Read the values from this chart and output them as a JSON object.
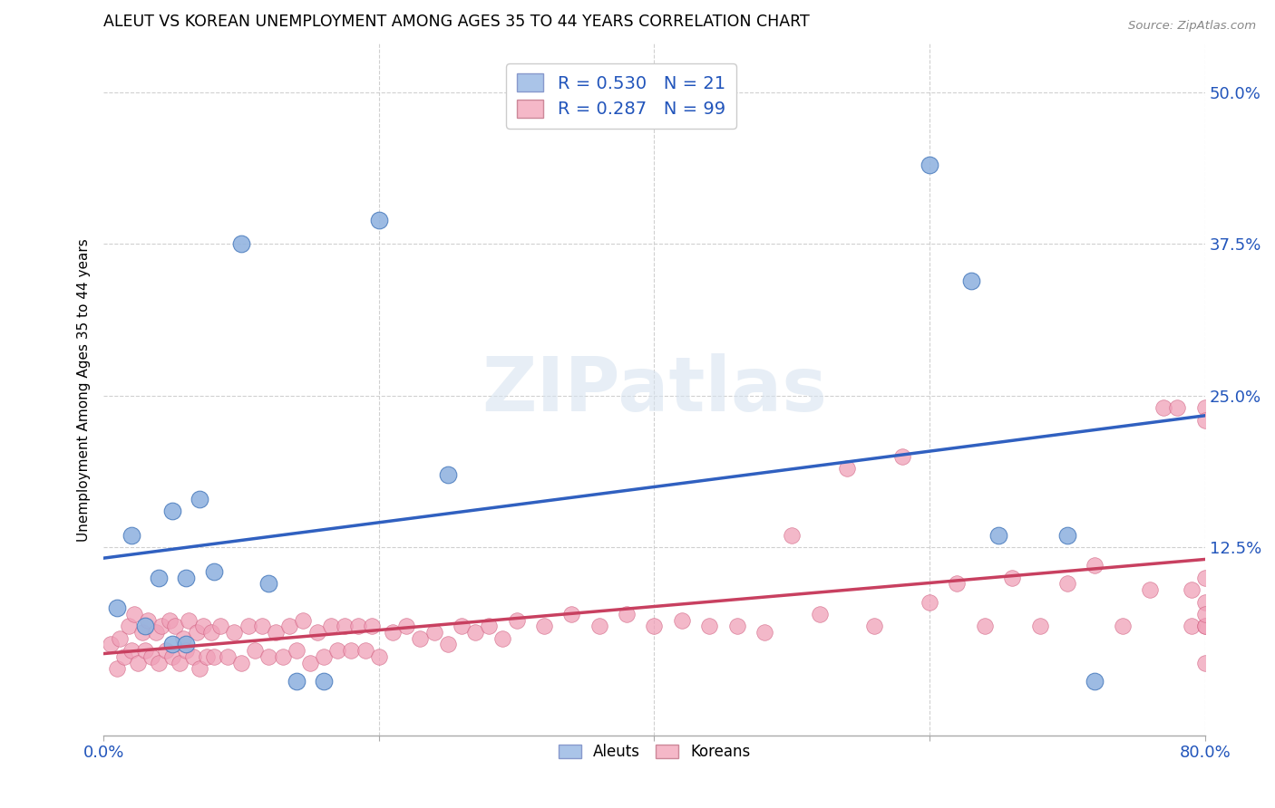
{
  "title": "ALEUT VS KOREAN UNEMPLOYMENT AMONG AGES 35 TO 44 YEARS CORRELATION CHART",
  "source": "Source: ZipAtlas.com",
  "ylabel": "Unemployment Among Ages 35 to 44 years",
  "xlim": [
    0.0,
    0.8
  ],
  "ylim": [
    -0.03,
    0.54
  ],
  "xticks": [
    0.0,
    0.2,
    0.4,
    0.6,
    0.8
  ],
  "xticklabels": [
    "0.0%",
    "",
    "",
    "",
    "80.0%"
  ],
  "yticks": [
    0.0,
    0.125,
    0.25,
    0.375,
    0.5
  ],
  "yticklabels": [
    "",
    "12.5%",
    "25.0%",
    "37.5%",
    "50.0%"
  ],
  "background_color": "#ffffff",
  "grid_color": "#d0d0d0",
  "watermark_text": "ZIPatlas",
  "aleuts_color": "#92b4e0",
  "aleuts_edge_color": "#5080c0",
  "koreans_color": "#f0a0b8",
  "koreans_edge_color": "#d06080",
  "aleuts_line_color": "#3060c0",
  "koreans_line_color": "#c84060",
  "aleuts_R": 0.53,
  "aleuts_N": 21,
  "koreans_R": 0.287,
  "koreans_N": 99,
  "legend_box_aleuts": "#aac4e8",
  "legend_box_koreans": "#f5b8c8",
  "legend_text_color": "#2255bb",
  "aleuts_x": [
    0.01,
    0.02,
    0.03,
    0.04,
    0.05,
    0.05,
    0.06,
    0.06,
    0.07,
    0.08,
    0.1,
    0.12,
    0.14,
    0.16,
    0.2,
    0.25,
    0.6,
    0.63,
    0.65,
    0.7,
    0.72
  ],
  "aleuts_y": [
    0.075,
    0.135,
    0.06,
    0.1,
    0.045,
    0.155,
    0.045,
    0.1,
    0.165,
    0.105,
    0.375,
    0.095,
    0.015,
    0.015,
    0.395,
    0.185,
    0.44,
    0.345,
    0.135,
    0.135,
    0.015
  ],
  "koreans_x": [
    0.005,
    0.01,
    0.012,
    0.015,
    0.018,
    0.02,
    0.022,
    0.025,
    0.028,
    0.03,
    0.032,
    0.035,
    0.038,
    0.04,
    0.042,
    0.045,
    0.048,
    0.05,
    0.052,
    0.055,
    0.058,
    0.06,
    0.062,
    0.065,
    0.068,
    0.07,
    0.072,
    0.075,
    0.078,
    0.08,
    0.085,
    0.09,
    0.095,
    0.1,
    0.105,
    0.11,
    0.115,
    0.12,
    0.125,
    0.13,
    0.135,
    0.14,
    0.145,
    0.15,
    0.155,
    0.16,
    0.165,
    0.17,
    0.175,
    0.18,
    0.185,
    0.19,
    0.195,
    0.2,
    0.21,
    0.22,
    0.23,
    0.24,
    0.25,
    0.26,
    0.27,
    0.28,
    0.29,
    0.3,
    0.32,
    0.34,
    0.36,
    0.38,
    0.4,
    0.42,
    0.44,
    0.46,
    0.48,
    0.5,
    0.52,
    0.54,
    0.56,
    0.58,
    0.6,
    0.62,
    0.64,
    0.66,
    0.68,
    0.7,
    0.72,
    0.74,
    0.76,
    0.77,
    0.78,
    0.79,
    0.79,
    0.8,
    0.8,
    0.8,
    0.8,
    0.8,
    0.8,
    0.8,
    0.8
  ],
  "koreans_y": [
    0.045,
    0.025,
    0.05,
    0.035,
    0.06,
    0.04,
    0.07,
    0.03,
    0.055,
    0.04,
    0.065,
    0.035,
    0.055,
    0.03,
    0.06,
    0.04,
    0.065,
    0.035,
    0.06,
    0.03,
    0.05,
    0.04,
    0.065,
    0.035,
    0.055,
    0.025,
    0.06,
    0.035,
    0.055,
    0.035,
    0.06,
    0.035,
    0.055,
    0.03,
    0.06,
    0.04,
    0.06,
    0.035,
    0.055,
    0.035,
    0.06,
    0.04,
    0.065,
    0.03,
    0.055,
    0.035,
    0.06,
    0.04,
    0.06,
    0.04,
    0.06,
    0.04,
    0.06,
    0.035,
    0.055,
    0.06,
    0.05,
    0.055,
    0.045,
    0.06,
    0.055,
    0.06,
    0.05,
    0.065,
    0.06,
    0.07,
    0.06,
    0.07,
    0.06,
    0.065,
    0.06,
    0.06,
    0.055,
    0.135,
    0.07,
    0.19,
    0.06,
    0.2,
    0.08,
    0.095,
    0.06,
    0.1,
    0.06,
    0.095,
    0.11,
    0.06,
    0.09,
    0.24,
    0.24,
    0.09,
    0.06,
    0.24,
    0.23,
    0.08,
    0.06,
    0.1,
    0.06,
    0.07,
    0.03
  ]
}
